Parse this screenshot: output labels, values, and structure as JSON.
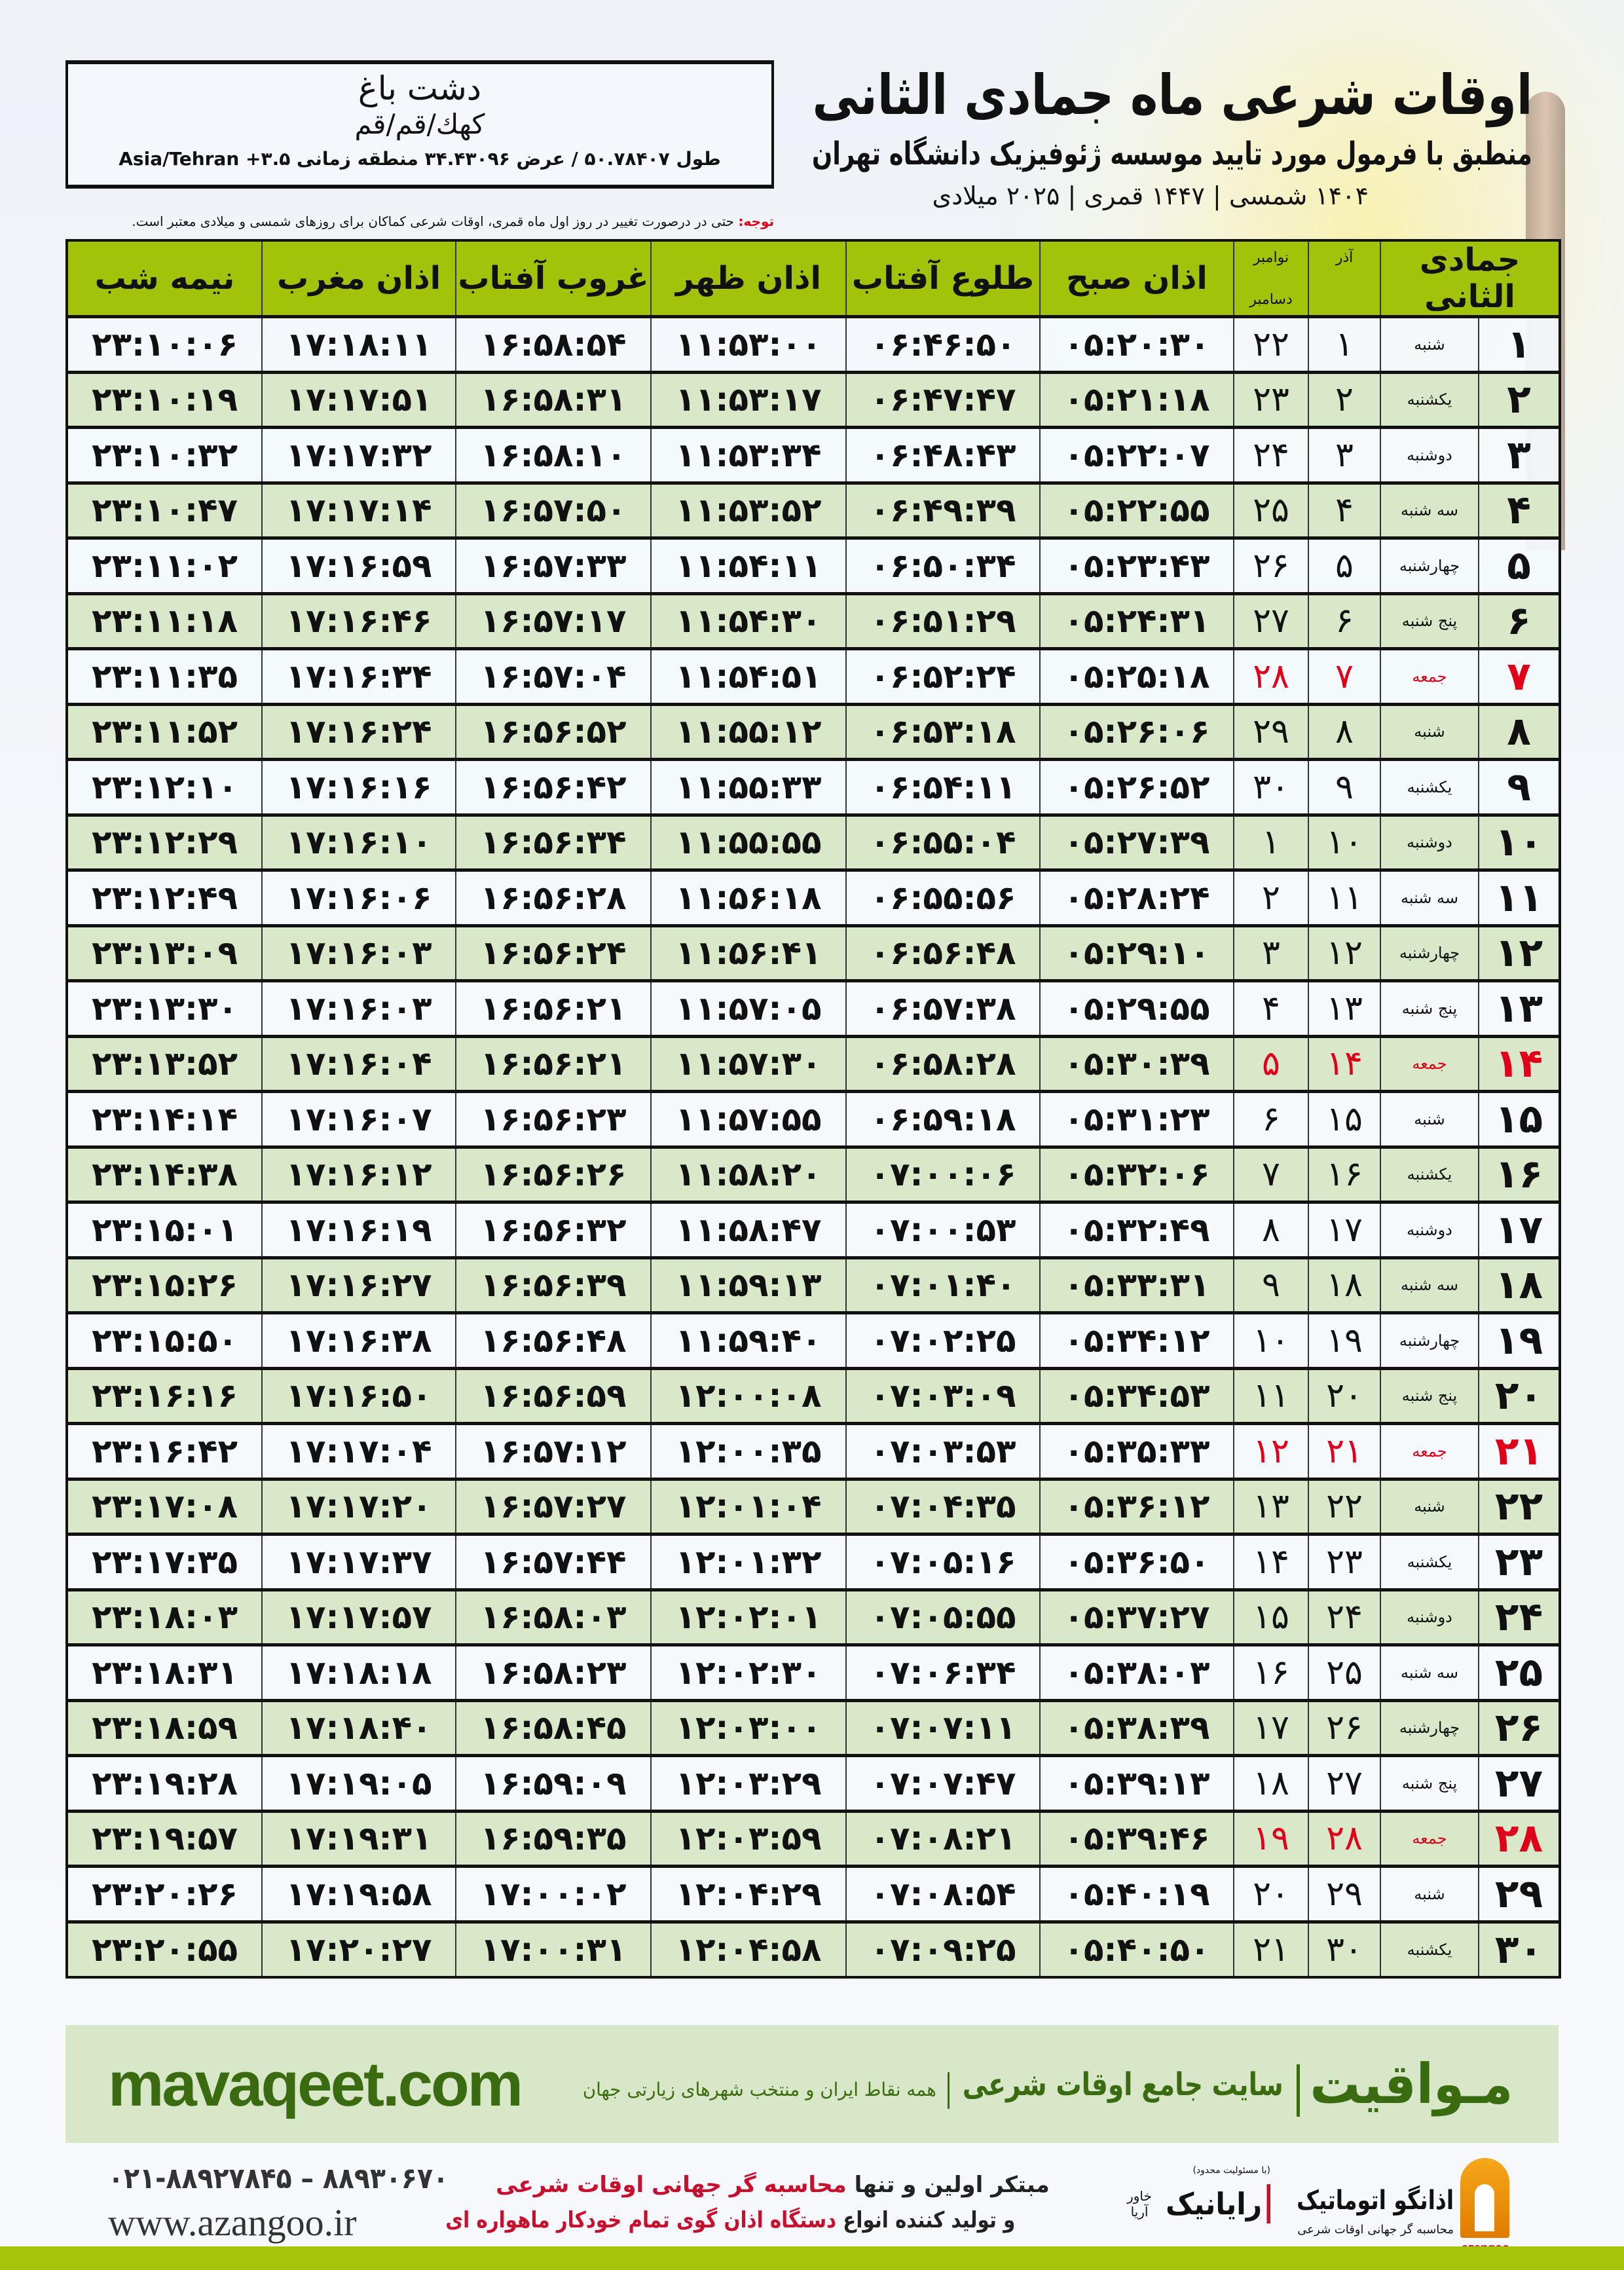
{
  "header": {
    "title": "اوقات شرعی ماه جمادی الثانی",
    "subtitle": "منطبق با فرمول مورد تایید موسسه ژئوفیزیک دانشگاه تهران",
    "date_line": "۱۴۰۴ شمسی | ۱۴۴۷ قمری | ۲۰۲۵ میلادی"
  },
  "location": {
    "city": "دشت باغ",
    "region": "کهك/قم/قم",
    "coords": "طول ۵۰.۷۸۴۰۷ / عرض ۳۴.۴۳۰۹۶ منطقه زمانی ۳.۵+ Asia/Tehran"
  },
  "note": {
    "label": "توجه:",
    "text": " حتی در درصورت تغییر در روز اول ماه قمری، اوقات شرعی کماکان برای روزهای شمسی و میلادی معتبر است."
  },
  "table": {
    "headers": {
      "hijri_month": "جمادی الثانی",
      "azar": "آذر",
      "greg_1": "نوامبر",
      "greg_2": "دسامبر",
      "fajr": "اذان صبح",
      "sunrise": "طلوع آفتاب",
      "dhuhr": "اذان ظهر",
      "sunset": "غروب آفتاب",
      "maghrib": "اذان مغرب",
      "midnight": "نیمه شب"
    },
    "friday_color": "#e0001a",
    "header_color": "#a3c20a",
    "alt_row_color": "#d9e8c8",
    "rows": [
      {
        "hijri": "۱",
        "weekday": "شنبه",
        "azar": "۱",
        "greg": "۲۲",
        "fajr": "۰۵:۲۰:۳۰",
        "sunrise": "۰۶:۴۶:۵۰",
        "dhuhr": "۱۱:۵۳:۰۰",
        "sunset": "۱۶:۵۸:۵۴",
        "maghrib": "۱۷:۱۸:۱۱",
        "midnight": "۲۳:۱۰:۰۶",
        "friday": false
      },
      {
        "hijri": "۲",
        "weekday": "یکشنبه",
        "azar": "۲",
        "greg": "۲۳",
        "fajr": "۰۵:۲۱:۱۸",
        "sunrise": "۰۶:۴۷:۴۷",
        "dhuhr": "۱۱:۵۳:۱۷",
        "sunset": "۱۶:۵۸:۳۱",
        "maghrib": "۱۷:۱۷:۵۱",
        "midnight": "۲۳:۱۰:۱۹",
        "friday": false
      },
      {
        "hijri": "۳",
        "weekday": "دوشنبه",
        "azar": "۳",
        "greg": "۲۴",
        "fajr": "۰۵:۲۲:۰۷",
        "sunrise": "۰۶:۴۸:۴۳",
        "dhuhr": "۱۱:۵۳:۳۴",
        "sunset": "۱۶:۵۸:۱۰",
        "maghrib": "۱۷:۱۷:۳۲",
        "midnight": "۲۳:۱۰:۳۲",
        "friday": false
      },
      {
        "hijri": "۴",
        "weekday": "سه شنبه",
        "azar": "۴",
        "greg": "۲۵",
        "fajr": "۰۵:۲۲:۵۵",
        "sunrise": "۰۶:۴۹:۳۹",
        "dhuhr": "۱۱:۵۳:۵۲",
        "sunset": "۱۶:۵۷:۵۰",
        "maghrib": "۱۷:۱۷:۱۴",
        "midnight": "۲۳:۱۰:۴۷",
        "friday": false
      },
      {
        "hijri": "۵",
        "weekday": "چهارشنبه",
        "azar": "۵",
        "greg": "۲۶",
        "fajr": "۰۵:۲۳:۴۳",
        "sunrise": "۰۶:۵۰:۳۴",
        "dhuhr": "۱۱:۵۴:۱۱",
        "sunset": "۱۶:۵۷:۳۳",
        "maghrib": "۱۷:۱۶:۵۹",
        "midnight": "۲۳:۱۱:۰۲",
        "friday": false
      },
      {
        "hijri": "۶",
        "weekday": "پنج شنبه",
        "azar": "۶",
        "greg": "۲۷",
        "fajr": "۰۵:۲۴:۳۱",
        "sunrise": "۰۶:۵۱:۲۹",
        "dhuhr": "۱۱:۵۴:۳۰",
        "sunset": "۱۶:۵۷:۱۷",
        "maghrib": "۱۷:۱۶:۴۶",
        "midnight": "۲۳:۱۱:۱۸",
        "friday": false
      },
      {
        "hijri": "۷",
        "weekday": "جمعه",
        "azar": "۷",
        "greg": "۲۸",
        "fajr": "۰۵:۲۵:۱۸",
        "sunrise": "۰۶:۵۲:۲۴",
        "dhuhr": "۱۱:۵۴:۵۱",
        "sunset": "۱۶:۵۷:۰۴",
        "maghrib": "۱۷:۱۶:۳۴",
        "midnight": "۲۳:۱۱:۳۵",
        "friday": true
      },
      {
        "hijri": "۸",
        "weekday": "شنبه",
        "azar": "۸",
        "greg": "۲۹",
        "fajr": "۰۵:۲۶:۰۶",
        "sunrise": "۰۶:۵۳:۱۸",
        "dhuhr": "۱۱:۵۵:۱۲",
        "sunset": "۱۶:۵۶:۵۲",
        "maghrib": "۱۷:۱۶:۲۴",
        "midnight": "۲۳:۱۱:۵۲",
        "friday": false
      },
      {
        "hijri": "۹",
        "weekday": "یکشنبه",
        "azar": "۹",
        "greg": "۳۰",
        "fajr": "۰۵:۲۶:۵۲",
        "sunrise": "۰۶:۵۴:۱۱",
        "dhuhr": "۱۱:۵۵:۳۳",
        "sunset": "۱۶:۵۶:۴۲",
        "maghrib": "۱۷:۱۶:۱۶",
        "midnight": "۲۳:۱۲:۱۰",
        "friday": false
      },
      {
        "hijri": "۱۰",
        "weekday": "دوشنبه",
        "azar": "۱۰",
        "greg": "۱",
        "fajr": "۰۵:۲۷:۳۹",
        "sunrise": "۰۶:۵۵:۰۴",
        "dhuhr": "۱۱:۵۵:۵۵",
        "sunset": "۱۶:۵۶:۳۴",
        "maghrib": "۱۷:۱۶:۱۰",
        "midnight": "۲۳:۱۲:۲۹",
        "friday": false
      },
      {
        "hijri": "۱۱",
        "weekday": "سه شنبه",
        "azar": "۱۱",
        "greg": "۲",
        "fajr": "۰۵:۲۸:۲۴",
        "sunrise": "۰۶:۵۵:۵۶",
        "dhuhr": "۱۱:۵۶:۱۸",
        "sunset": "۱۶:۵۶:۲۸",
        "maghrib": "۱۷:۱۶:۰۶",
        "midnight": "۲۳:۱۲:۴۹",
        "friday": false
      },
      {
        "hijri": "۱۲",
        "weekday": "چهارشنبه",
        "azar": "۱۲",
        "greg": "۳",
        "fajr": "۰۵:۲۹:۱۰",
        "sunrise": "۰۶:۵۶:۴۸",
        "dhuhr": "۱۱:۵۶:۴۱",
        "sunset": "۱۶:۵۶:۲۴",
        "maghrib": "۱۷:۱۶:۰۳",
        "midnight": "۲۳:۱۳:۰۹",
        "friday": false
      },
      {
        "hijri": "۱۳",
        "weekday": "پنج شنبه",
        "azar": "۱۳",
        "greg": "۴",
        "fajr": "۰۵:۲۹:۵۵",
        "sunrise": "۰۶:۵۷:۳۸",
        "dhuhr": "۱۱:۵۷:۰۵",
        "sunset": "۱۶:۵۶:۲۱",
        "maghrib": "۱۷:۱۶:۰۳",
        "midnight": "۲۳:۱۳:۳۰",
        "friday": false
      },
      {
        "hijri": "۱۴",
        "weekday": "جمعه",
        "azar": "۱۴",
        "greg": "۵",
        "fajr": "۰۵:۳۰:۳۹",
        "sunrise": "۰۶:۵۸:۲۸",
        "dhuhr": "۱۱:۵۷:۳۰",
        "sunset": "۱۶:۵۶:۲۱",
        "maghrib": "۱۷:۱۶:۰۴",
        "midnight": "۲۳:۱۳:۵۲",
        "friday": true
      },
      {
        "hijri": "۱۵",
        "weekday": "شنبه",
        "azar": "۱۵",
        "greg": "۶",
        "fajr": "۰۵:۳۱:۲۳",
        "sunrise": "۰۶:۵۹:۱۸",
        "dhuhr": "۱۱:۵۷:۵۵",
        "sunset": "۱۶:۵۶:۲۳",
        "maghrib": "۱۷:۱۶:۰۷",
        "midnight": "۲۳:۱۴:۱۴",
        "friday": false
      },
      {
        "hijri": "۱۶",
        "weekday": "یکشنبه",
        "azar": "۱۶",
        "greg": "۷",
        "fajr": "۰۵:۳۲:۰۶",
        "sunrise": "۰۷:۰۰:۰۶",
        "dhuhr": "۱۱:۵۸:۲۰",
        "sunset": "۱۶:۵۶:۲۶",
        "maghrib": "۱۷:۱۶:۱۲",
        "midnight": "۲۳:۱۴:۳۸",
        "friday": false
      },
      {
        "hijri": "۱۷",
        "weekday": "دوشنبه",
        "azar": "۱۷",
        "greg": "۸",
        "fajr": "۰۵:۳۲:۴۹",
        "sunrise": "۰۷:۰۰:۵۳",
        "dhuhr": "۱۱:۵۸:۴۷",
        "sunset": "۱۶:۵۶:۳۲",
        "maghrib": "۱۷:۱۶:۱۹",
        "midnight": "۲۳:۱۵:۰۱",
        "friday": false
      },
      {
        "hijri": "۱۸",
        "weekday": "سه شنبه",
        "azar": "۱۸",
        "greg": "۹",
        "fajr": "۰۵:۳۳:۳۱",
        "sunrise": "۰۷:۰۱:۴۰",
        "dhuhr": "۱۱:۵۹:۱۳",
        "sunset": "۱۶:۵۶:۳۹",
        "maghrib": "۱۷:۱۶:۲۷",
        "midnight": "۲۳:۱۵:۲۶",
        "friday": false
      },
      {
        "hijri": "۱۹",
        "weekday": "چهارشنبه",
        "azar": "۱۹",
        "greg": "۱۰",
        "fajr": "۰۵:۳۴:۱۲",
        "sunrise": "۰۷:۰۲:۲۵",
        "dhuhr": "۱۱:۵۹:۴۰",
        "sunset": "۱۶:۵۶:۴۸",
        "maghrib": "۱۷:۱۶:۳۸",
        "midnight": "۲۳:۱۵:۵۰",
        "friday": false
      },
      {
        "hijri": "۲۰",
        "weekday": "پنج شنبه",
        "azar": "۲۰",
        "greg": "۱۱",
        "fajr": "۰۵:۳۴:۵۳",
        "sunrise": "۰۷:۰۳:۰۹",
        "dhuhr": "۱۲:۰۰:۰۸",
        "sunset": "۱۶:۵۶:۵۹",
        "maghrib": "۱۷:۱۶:۵۰",
        "midnight": "۲۳:۱۶:۱۶",
        "friday": false
      },
      {
        "hijri": "۲۱",
        "weekday": "جمعه",
        "azar": "۲۱",
        "greg": "۱۲",
        "fajr": "۰۵:۳۵:۳۳",
        "sunrise": "۰۷:۰۳:۵۳",
        "dhuhr": "۱۲:۰۰:۳۵",
        "sunset": "۱۶:۵۷:۱۲",
        "maghrib": "۱۷:۱۷:۰۴",
        "midnight": "۲۳:۱۶:۴۲",
        "friday": true
      },
      {
        "hijri": "۲۲",
        "weekday": "شنبه",
        "azar": "۲۲",
        "greg": "۱۳",
        "fajr": "۰۵:۳۶:۱۲",
        "sunrise": "۰۷:۰۴:۳۵",
        "dhuhr": "۱۲:۰۱:۰۴",
        "sunset": "۱۶:۵۷:۲۷",
        "maghrib": "۱۷:۱۷:۲۰",
        "midnight": "۲۳:۱۷:۰۸",
        "friday": false
      },
      {
        "hijri": "۲۳",
        "weekday": "یکشنبه",
        "azar": "۲۳",
        "greg": "۱۴",
        "fajr": "۰۵:۳۶:۵۰",
        "sunrise": "۰۷:۰۵:۱۶",
        "dhuhr": "۱۲:۰۱:۳۲",
        "sunset": "۱۶:۵۷:۴۴",
        "maghrib": "۱۷:۱۷:۳۷",
        "midnight": "۲۳:۱۷:۳۵",
        "friday": false
      },
      {
        "hijri": "۲۴",
        "weekday": "دوشنبه",
        "azar": "۲۴",
        "greg": "۱۵",
        "fajr": "۰۵:۳۷:۲۷",
        "sunrise": "۰۷:۰۵:۵۵",
        "dhuhr": "۱۲:۰۲:۰۱",
        "sunset": "۱۶:۵۸:۰۳",
        "maghrib": "۱۷:۱۷:۵۷",
        "midnight": "۲۳:۱۸:۰۳",
        "friday": false
      },
      {
        "hijri": "۲۵",
        "weekday": "سه شنبه",
        "azar": "۲۵",
        "greg": "۱۶",
        "fajr": "۰۵:۳۸:۰۳",
        "sunrise": "۰۷:۰۶:۳۴",
        "dhuhr": "۱۲:۰۲:۳۰",
        "sunset": "۱۶:۵۸:۲۳",
        "maghrib": "۱۷:۱۸:۱۸",
        "midnight": "۲۳:۱۸:۳۱",
        "friday": false
      },
      {
        "hijri": "۲۶",
        "weekday": "چهارشنبه",
        "azar": "۲۶",
        "greg": "۱۷",
        "fajr": "۰۵:۳۸:۳۹",
        "sunrise": "۰۷:۰۷:۱۱",
        "dhuhr": "۱۲:۰۳:۰۰",
        "sunset": "۱۶:۵۸:۴۵",
        "maghrib": "۱۷:۱۸:۴۰",
        "midnight": "۲۳:۱۸:۵۹",
        "friday": false
      },
      {
        "hijri": "۲۷",
        "weekday": "پنج شنبه",
        "azar": "۲۷",
        "greg": "۱۸",
        "fajr": "۰۵:۳۹:۱۳",
        "sunrise": "۰۷:۰۷:۴۷",
        "dhuhr": "۱۲:۰۳:۲۹",
        "sunset": "۱۶:۵۹:۰۹",
        "maghrib": "۱۷:۱۹:۰۵",
        "midnight": "۲۳:۱۹:۲۸",
        "friday": false
      },
      {
        "hijri": "۲۸",
        "weekday": "جمعه",
        "azar": "۲۸",
        "greg": "۱۹",
        "fajr": "۰۵:۳۹:۴۶",
        "sunrise": "۰۷:۰۸:۲۱",
        "dhuhr": "۱۲:۰۳:۵۹",
        "sunset": "۱۶:۵۹:۳۵",
        "maghrib": "۱۷:۱۹:۳۱",
        "midnight": "۲۳:۱۹:۵۷",
        "friday": true
      },
      {
        "hijri": "۲۹",
        "weekday": "شنبه",
        "azar": "۲۹",
        "greg": "۲۰",
        "fajr": "۰۵:۴۰:۱۹",
        "sunrise": "۰۷:۰۸:۵۴",
        "dhuhr": "۱۲:۰۴:۲۹",
        "sunset": "۱۷:۰۰:۰۲",
        "maghrib": "۱۷:۱۹:۵۸",
        "midnight": "۲۳:۲۰:۲۶",
        "friday": false
      },
      {
        "hijri": "۳۰",
        "weekday": "یکشنبه",
        "azar": "۳۰",
        "greg": "۲۱",
        "fajr": "۰۵:۴۰:۵۰",
        "sunrise": "۰۷:۰۹:۲۵",
        "dhuhr": "۱۲:۰۴:۵۸",
        "sunset": "۱۷:۰۰:۳۱",
        "maghrib": "۱۷:۲۰:۲۷",
        "midnight": "۲۳:۲۰:۵۵",
        "friday": false
      }
    ]
  },
  "footer": {
    "mavaqeet_logo": "مـواقیت",
    "mavaqeet_tagline": "سایت جامع اوقات شرعی",
    "mavaqeet_sub": "همه نقاط ایران و منتخب شهرهای زیارتی جهان",
    "mavaqeet_url": "mavaqeet.com",
    "brand_color": "#3b6b10",
    "phone": "۰۲۱-۸۸۹۲۷۸۴۵ – ۸۸۹۳۰۶۷۰",
    "website": "www.azangoo.ir",
    "promo_1a": "مبتکر اولین و تنها ",
    "promo_1b": "محاسبه گر جهانی اوقات شرعی",
    "promo_2a": "و تولید کننده انواع ",
    "promo_2b": "دستگاه اذان گوی تمام خودکار ماهواره ای",
    "rayanik_ltd": "(با مسئولیت محدود)",
    "rayanik_name": "رایانیک",
    "rayanik_sub": "خاور آریا",
    "azangoo_name": "اذانگو اتوماتیک",
    "azangoo_latin": "azangoo",
    "azangoo_sub": "محاسبه گر جهانی اوقات شرعی"
  }
}
